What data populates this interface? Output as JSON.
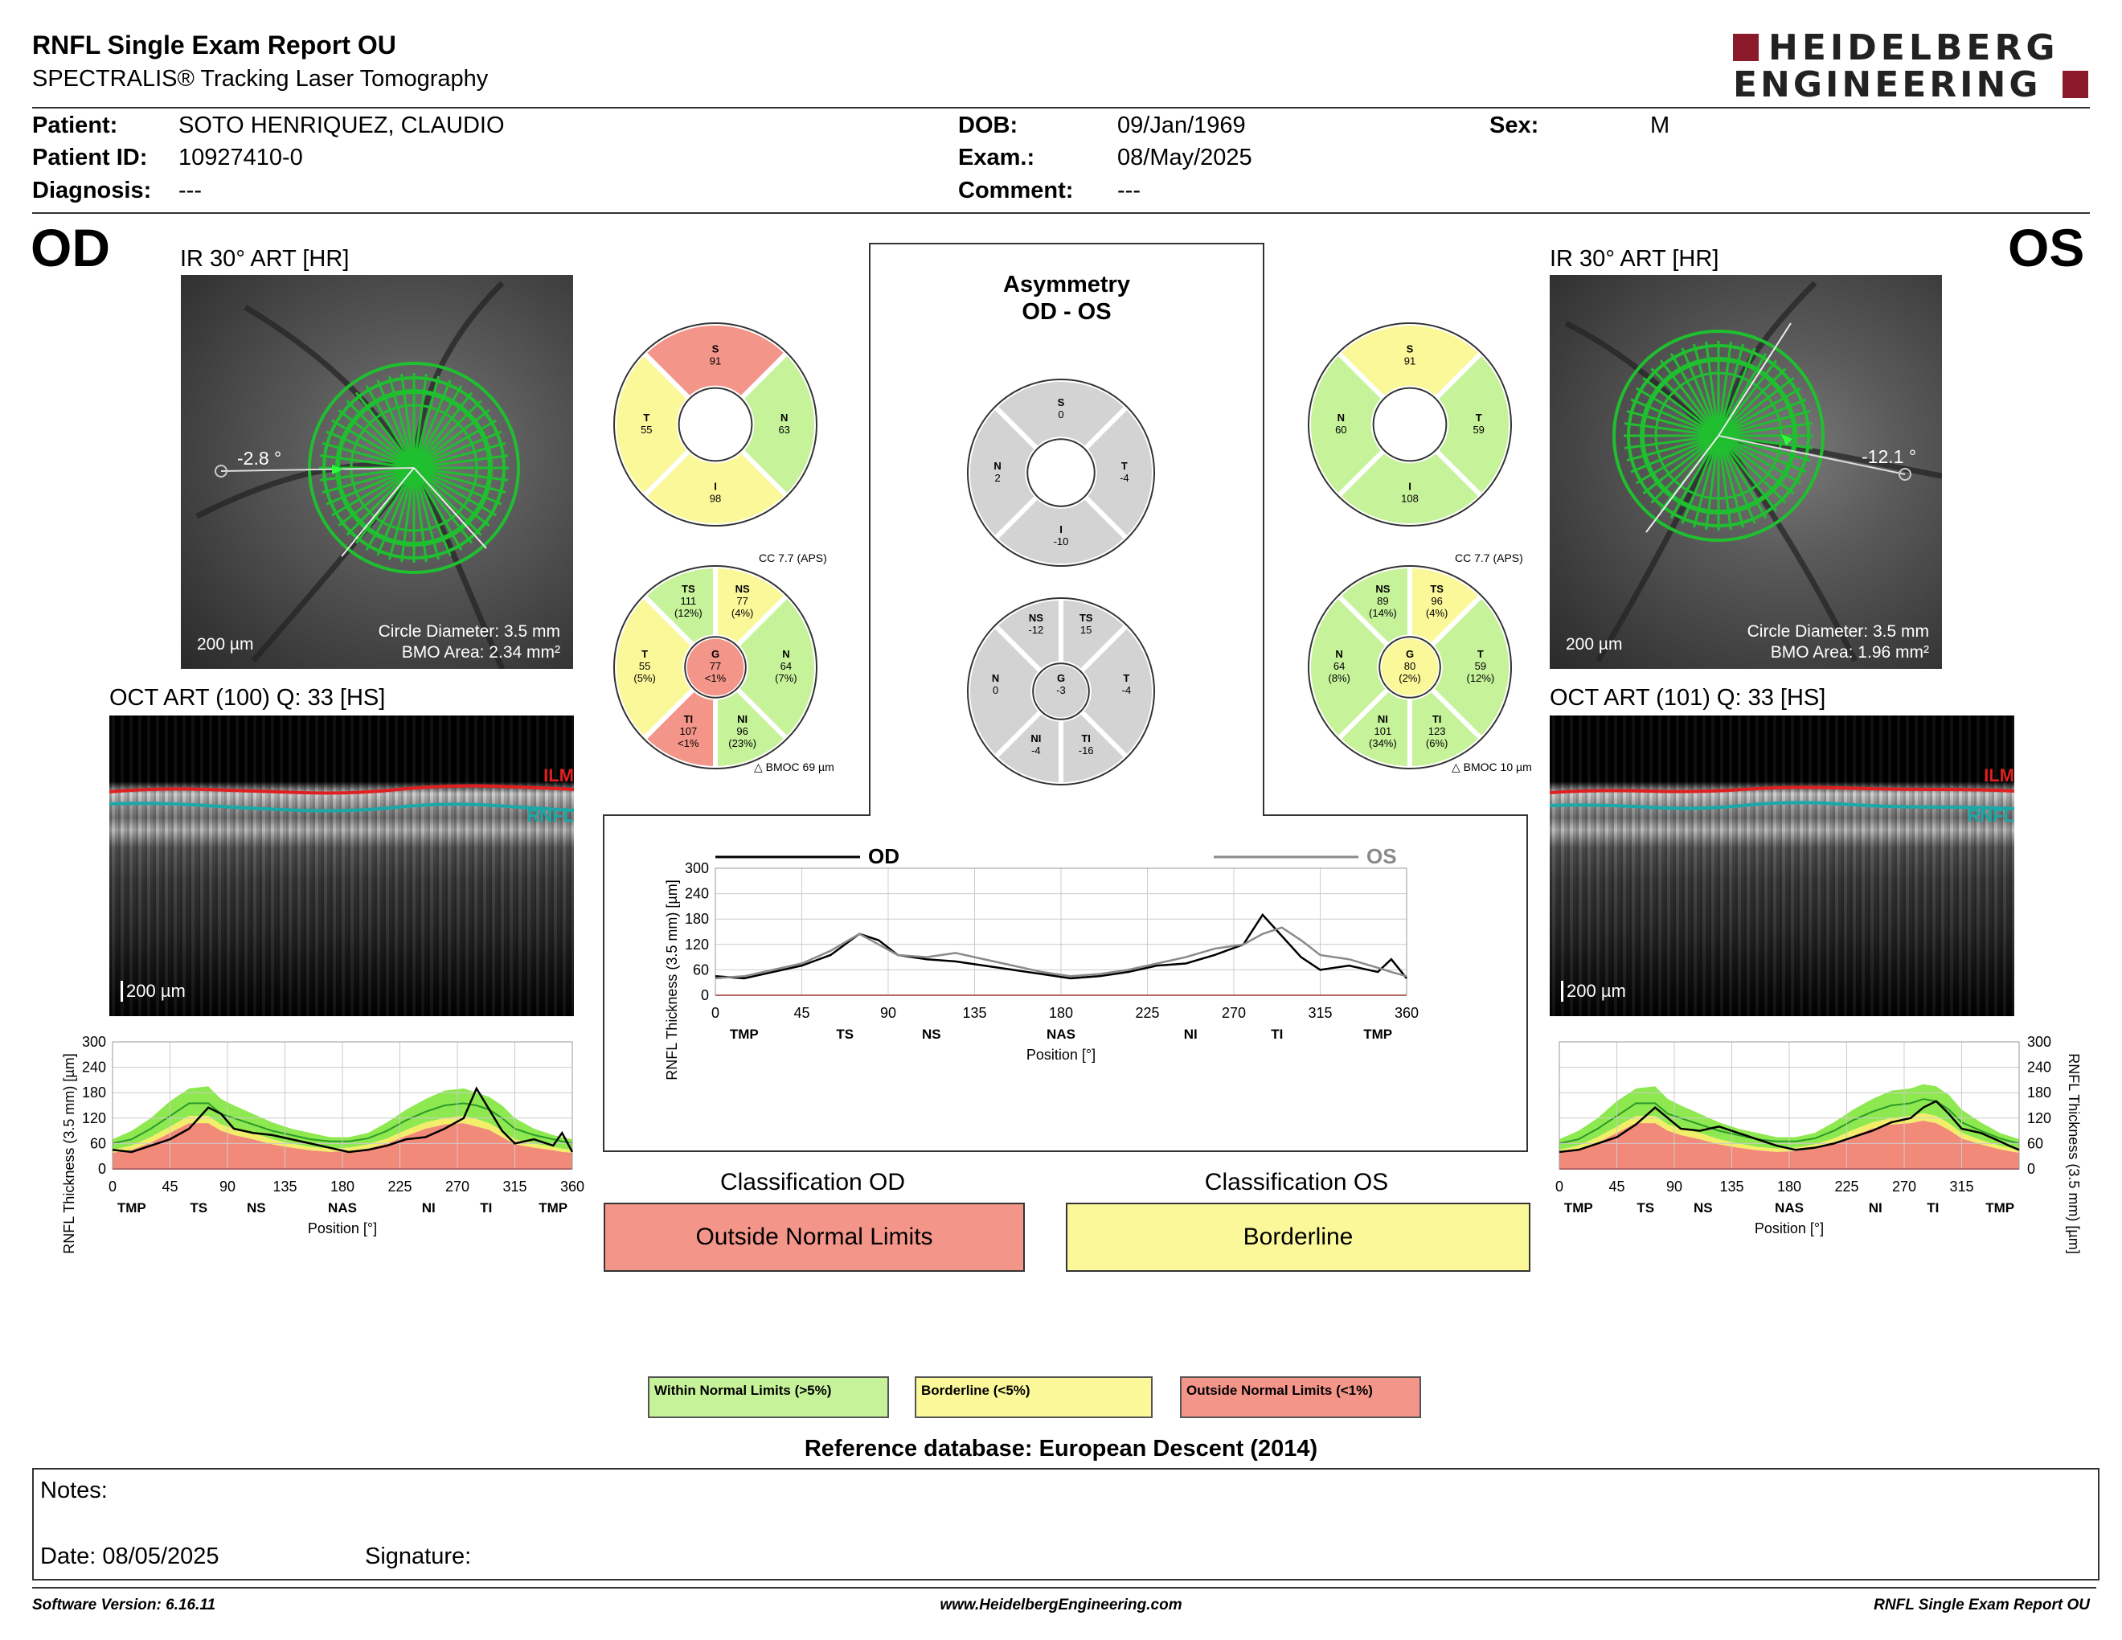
{
  "header": {
    "title": "RNFL Single Exam Report OU",
    "subtitle": "SPECTRALIS® Tracking Laser Tomography",
    "logo_line1": "HEIDELBERG",
    "logo_line2": "ENGINEERING"
  },
  "patient": {
    "patient_label": "Patient:",
    "patient_value": "SOTO HENRIQUEZ, CLAUDIO",
    "id_label": "Patient ID:",
    "id_value": "10927410-0",
    "diagnosis_label": "Diagnosis:",
    "diagnosis_value": "---",
    "dob_label": "DOB:",
    "dob_value": "09/Jan/1969",
    "exam_label": "Exam.:",
    "exam_value": "08/May/2025",
    "comment_label": "Comment:",
    "comment_value": "---",
    "sex_label": "Sex:",
    "sex_value": "M"
  },
  "od": {
    "eye": "OD",
    "ir_title": "IR 30° ART [HR]",
    "angle": "-2.8 °",
    "scale": "200 µm",
    "circle_diameter": "Circle Diameter: 3.5 mm",
    "bmo_area": "BMO Area: 2.34 mm²",
    "oct_title": "OCT ART (100) Q: 33 [HS]",
    "oct_scale": "200 µm",
    "ilm": "ILM",
    "rnfl": "RNFL",
    "cc": "CC 7.7 (APS)",
    "bmoc": "BMOC 69 µm",
    "quad": {
      "S": "91",
      "T": "55",
      "N": "63",
      "I": "98"
    },
    "sector": {
      "TS": [
        "111",
        "(12%)"
      ],
      "NS": [
        "77",
        "(4%)"
      ],
      "T": [
        "55",
        "(5%)"
      ],
      "N": [
        "64",
        "(7%)"
      ],
      "TI": [
        "107",
        "<1%"
      ],
      "NI": [
        "96",
        "(23%)"
      ],
      "G": [
        "77",
        "<1%"
      ]
    },
    "classification_label": "Classification OD",
    "classification_value": "Outside Normal Limits"
  },
  "os": {
    "eye": "OS",
    "ir_title": "IR 30° ART [HR]",
    "angle": "-12.1 °",
    "scale": "200 µm",
    "circle_diameter": "Circle Diameter: 3.5 mm",
    "bmo_area": "BMO Area: 1.96 mm²",
    "oct_title": "OCT ART (101) Q: 33 [HS]",
    "oct_scale": "200 µm",
    "ilm": "ILM",
    "rnfl": "RNFL",
    "cc": "CC 7.7 (APS)",
    "bmoc": "BMOC 10 µm",
    "quad": {
      "S": "91",
      "N": "60",
      "T": "59",
      "I": "108"
    },
    "sector": {
      "NS": [
        "89",
        "(14%)"
      ],
      "TS": [
        "96",
        "(4%)"
      ],
      "N": [
        "64",
        "(8%)"
      ],
      "T": [
        "59",
        "(12%)"
      ],
      "NI": [
        "101",
        "(34%)"
      ],
      "TI": [
        "123",
        "(6%)"
      ],
      "G": [
        "80",
        "(2%)"
      ]
    },
    "classification_label": "Classification OS",
    "classification_value": "Borderline"
  },
  "asymmetry": {
    "title1": "Asymmetry",
    "title2": "OD - OS",
    "quad": {
      "S": "0",
      "N": "2",
      "T": "-4",
      "I": "-10"
    },
    "sector": {
      "NS": "-12",
      "TS": "15",
      "N": "0",
      "G": "-3",
      "T": "-4",
      "NI": "-4",
      "TI": "-16"
    },
    "legend_od": "OD",
    "legend_os": "OS"
  },
  "colors": {
    "green": "#c6f29a",
    "yellow": "#fbf89a",
    "red": "#f4958a",
    "gray": "#d3d3d3",
    "od_line": "#000000",
    "os_line": "#8a8a8a"
  },
  "chart_data": [
    {
      "type": "line",
      "title": "OD",
      "ylabel": "RNFL Thickness (3.5 mm) [µm]",
      "xlabel": "Position [°]",
      "xlim": [
        0,
        360
      ],
      "ylim": [
        0,
        300
      ],
      "xticks": [
        "0",
        "45",
        "90",
        "135",
        "180",
        "225",
        "270",
        "315",
        "360"
      ],
      "yticks": [
        "0",
        "60",
        "120",
        "180",
        "240",
        "300"
      ],
      "sectors": [
        "TMP",
        "TS",
        "NS",
        "NAS",
        "NI",
        "TI",
        "TMP"
      ],
      "x": [
        0,
        15,
        30,
        45,
        60,
        75,
        85,
        95,
        110,
        125,
        140,
        155,
        170,
        185,
        200,
        215,
        230,
        245,
        260,
        275,
        285,
        295,
        305,
        315,
        330,
        345,
        352,
        360
      ],
      "series": [
        {
          "name": "OD",
          "values": [
            45,
            40,
            55,
            70,
            95,
            145,
            130,
            95,
            85,
            80,
            70,
            60,
            50,
            40,
            45,
            55,
            70,
            75,
            95,
            120,
            190,
            140,
            90,
            60,
            70,
            55,
            85,
            40
          ]
        }
      ],
      "normal_upper": [
        70,
        90,
        120,
        160,
        190,
        195,
        165,
        150,
        130,
        110,
        95,
        85,
        75,
        75,
        85,
        110,
        140,
        165,
        185,
        190,
        180,
        170,
        150,
        120,
        95,
        80,
        75,
        70
      ],
      "normal_median": [
        60,
        70,
        95,
        125,
        155,
        155,
        130,
        120,
        105,
        90,
        80,
        70,
        65,
        65,
        72,
        90,
        115,
        135,
        150,
        155,
        150,
        140,
        120,
        95,
        80,
        70,
        65,
        60
      ],
      "borderline": [
        45,
        55,
        75,
        100,
        125,
        125,
        105,
        95,
        85,
        70,
        60,
        52,
        48,
        50,
        58,
        72,
        92,
        110,
        120,
        125,
        118,
        108,
        90,
        70,
        60,
        52,
        48,
        45
      ],
      "outside": [
        38,
        45,
        62,
        85,
        108,
        108,
        90,
        80,
        70,
        58,
        50,
        44,
        40,
        42,
        48,
        60,
        78,
        95,
        105,
        108,
        100,
        92,
        75,
        58,
        50,
        44,
        40,
        38
      ]
    },
    {
      "type": "line",
      "title": "OS",
      "ylabel": "RNFL Thickness (3.5 mm) [µm]",
      "xlabel": "Position [°]",
      "xlim": [
        0,
        360
      ],
      "ylim": [
        0,
        300
      ],
      "xticks": [
        "0",
        "45",
        "90",
        "135",
        "180",
        "225",
        "270",
        "315"
      ],
      "yticks": [
        "0",
        "60",
        "120",
        "180",
        "240",
        "300"
      ],
      "sectors": [
        "TMP",
        "TS",
        "NS",
        "NAS",
        "NI",
        "TI",
        "TMP"
      ],
      "x": [
        0,
        15,
        30,
        45,
        60,
        75,
        85,
        95,
        110,
        125,
        140,
        155,
        170,
        185,
        200,
        215,
        230,
        245,
        260,
        275,
        285,
        295,
        305,
        315,
        330,
        345,
        352,
        360
      ],
      "series": [
        {
          "name": "OS",
          "values": [
            40,
            45,
            60,
            75,
            105,
            145,
            120,
            95,
            90,
            100,
            85,
            70,
            55,
            45,
            50,
            60,
            75,
            90,
            110,
            120,
            145,
            160,
            130,
            95,
            85,
            65,
            55,
            45
          ]
        }
      ],
      "normal_upper": [
        70,
        90,
        120,
        160,
        190,
        195,
        165,
        150,
        130,
        110,
        95,
        85,
        75,
        75,
        85,
        110,
        140,
        165,
        185,
        190,
        200,
        195,
        175,
        140,
        110,
        85,
        78,
        70
      ],
      "normal_median": [
        60,
        70,
        95,
        125,
        155,
        155,
        130,
        120,
        105,
        90,
        80,
        70,
        65,
        65,
        72,
        90,
        115,
        135,
        150,
        155,
        165,
        160,
        140,
        110,
        90,
        72,
        66,
        60
      ],
      "borderline": [
        45,
        55,
        75,
        100,
        125,
        125,
        105,
        95,
        85,
        70,
        60,
        52,
        48,
        50,
        58,
        72,
        92,
        110,
        120,
        125,
        132,
        125,
        108,
        85,
        68,
        55,
        50,
        45
      ],
      "outside": [
        38,
        45,
        62,
        85,
        108,
        108,
        90,
        80,
        70,
        58,
        50,
        44,
        40,
        42,
        48,
        60,
        78,
        95,
        105,
        108,
        114,
        108,
        92,
        72,
        58,
        46,
        42,
        38
      ]
    },
    {
      "type": "line",
      "title": "Asymmetry",
      "ylabel": "RNFL Thickness (3.5 mm) [µm]",
      "xlabel": "Position [°]",
      "xlim": [
        0,
        360
      ],
      "ylim": [
        0,
        300
      ],
      "xticks": [
        "0",
        "45",
        "90",
        "135",
        "180",
        "225",
        "270",
        "315",
        "360"
      ],
      "yticks": [
        "0",
        "60",
        "120",
        "180",
        "240",
        "300"
      ],
      "sectors": [
        "TMP",
        "TS",
        "NS",
        "NAS",
        "NI",
        "TI",
        "TMP"
      ],
      "x": [
        0,
        15,
        30,
        45,
        60,
        75,
        85,
        95,
        110,
        125,
        140,
        155,
        170,
        185,
        200,
        215,
        230,
        245,
        260,
        275,
        285,
        295,
        305,
        315,
        330,
        345,
        352,
        360
      ],
      "series": [
        {
          "name": "OD",
          "values": [
            45,
            40,
            55,
            70,
            95,
            145,
            130,
            95,
            85,
            80,
            70,
            60,
            50,
            40,
            45,
            55,
            70,
            75,
            95,
            120,
            190,
            140,
            90,
            60,
            70,
            55,
            85,
            40
          ]
        },
        {
          "name": "OS",
          "values": [
            40,
            45,
            60,
            75,
            105,
            145,
            120,
            95,
            90,
            100,
            85,
            70,
            55,
            45,
            50,
            60,
            75,
            90,
            110,
            120,
            145,
            160,
            130,
            95,
            85,
            65,
            55,
            45
          ]
        }
      ]
    }
  ],
  "legend": {
    "wnl": "Within Normal Limits (>5%)",
    "bl": "Borderline (<5%)",
    "onl": "Outside Normal Limits (<1%)"
  },
  "reference": "Reference database: European Descent (2014)",
  "notes": {
    "notes_label": "Notes:",
    "date_label": "Date: 08/05/2025",
    "signature_label": "Signature:"
  },
  "footer": {
    "software": "Software Version: 6.16.11",
    "website": "www.HeidelbergEngineering.com",
    "report": "RNFL Single Exam Report OU"
  }
}
